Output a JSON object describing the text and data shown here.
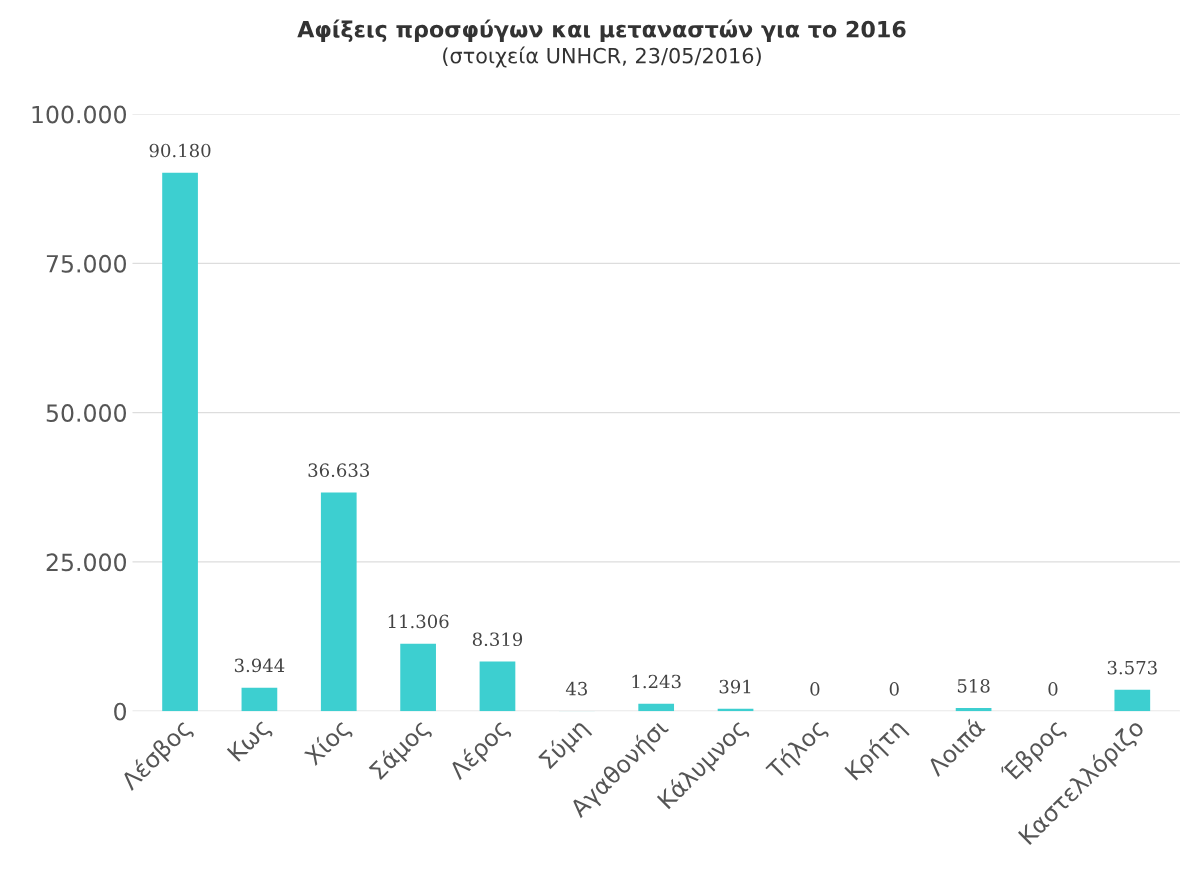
{
  "chart_data": {
    "type": "bar",
    "title": "Αφίξεις προσφύγων και μεταναστών για το 2016",
    "subtitle": "(στοιχεία UNHCR, 23/05/2016)",
    "categories": [
      "Λέσβος",
      "Κως",
      "Χίος",
      "Σάμος",
      "Λέρος",
      "Σύμη",
      "Αγαθονήσι",
      "Κάλυμνος",
      "Τήλος",
      "Κρήτη",
      "Λοιπά",
      "Έβρος",
      "Καστελλόριζο"
    ],
    "values": [
      90180,
      3944,
      36633,
      11306,
      8319,
      43,
      1243,
      391,
      0,
      0,
      518,
      0,
      3573
    ],
    "value_labels": [
      "90.180",
      "3.944",
      "36.633",
      "11.306",
      "8.319",
      "43",
      "1.243",
      "391",
      "0",
      "0",
      "518",
      "0",
      "3.573"
    ],
    "color": "#3dcfd0",
    "ylim": [
      0,
      100000
    ],
    "yticks": [
      0,
      {
        "value": 25000,
        "label": "25.000"
      },
      {
        "value": 50000,
        "label": "50.000"
      },
      {
        "value": 75000,
        "label": "75.000"
      },
      {
        "value": 100000,
        "label": "100.000"
      }
    ],
    "grid": "y"
  }
}
